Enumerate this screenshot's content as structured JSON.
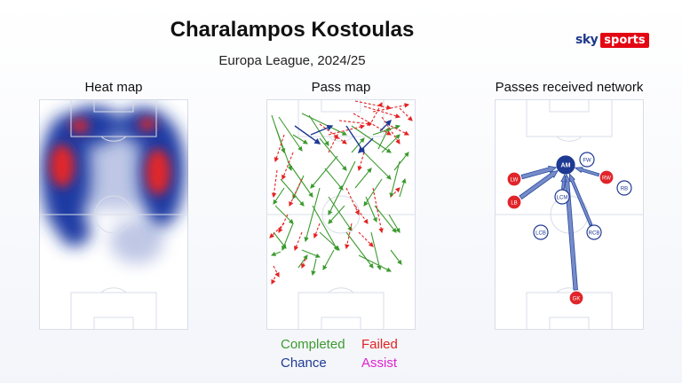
{
  "header": {
    "title": "Charalampos Kostoulas",
    "subtitle": "Europa League, 2024/25",
    "logo_sky": "sky",
    "logo_sports": "sports"
  },
  "panels": {
    "heat_label": "Heat map",
    "pass_label": "Pass map",
    "network_label": "Passes received network"
  },
  "legend": {
    "completed": "Completed",
    "failed": "Failed",
    "chance": "Chance",
    "assist": "Assist"
  },
  "colors": {
    "completed": "#3c9a2f",
    "failed": "#e42222",
    "chance": "#1f3a93",
    "assist": "#e020d0",
    "node_fill": "#1f3a93",
    "node_red": "#e0252a",
    "pitch_line": "#d8dde8"
  },
  "chart_data": [
    {
      "type": "heatmap",
      "title": "Heat map",
      "note": "Activity concentrated in both half-spaces of the attacking half, strongest on the left and right channels"
    },
    {
      "type": "scatter",
      "title": "Pass map",
      "series": [
        {
          "name": "Completed",
          "count_visible": 45
        },
        {
          "name": "Failed",
          "count_visible": 30
        },
        {
          "name": "Chance",
          "count_visible": 5
        },
        {
          "name": "Assist",
          "count_visible": 0
        }
      ]
    },
    {
      "type": "network",
      "title": "Passes received network",
      "focus_node": "AM",
      "nodes": [
        {
          "label": "AM",
          "style": "focus"
        },
        {
          "label": "FW",
          "style": "outline"
        },
        {
          "label": "LW",
          "style": "red"
        },
        {
          "label": "RW",
          "style": "red"
        },
        {
          "label": "RB",
          "style": "outline"
        },
        {
          "label": "LB",
          "style": "red"
        },
        {
          "label": "LCM",
          "style": "outline"
        },
        {
          "label": "LCB",
          "style": "outline"
        },
        {
          "label": "RCB",
          "style": "outline"
        },
        {
          "label": "GK",
          "style": "red"
        }
      ],
      "edges": [
        {
          "from": "LW",
          "to": "AM",
          "weight": 3
        },
        {
          "from": "LB",
          "to": "AM",
          "weight": 3
        },
        {
          "from": "RW",
          "to": "AM",
          "weight": 2
        },
        {
          "from": "GK",
          "to": "AM",
          "weight": 3
        },
        {
          "from": "LCM",
          "to": "AM",
          "weight": 2
        },
        {
          "from": "RCB",
          "to": "AM",
          "weight": 2
        }
      ]
    }
  ]
}
